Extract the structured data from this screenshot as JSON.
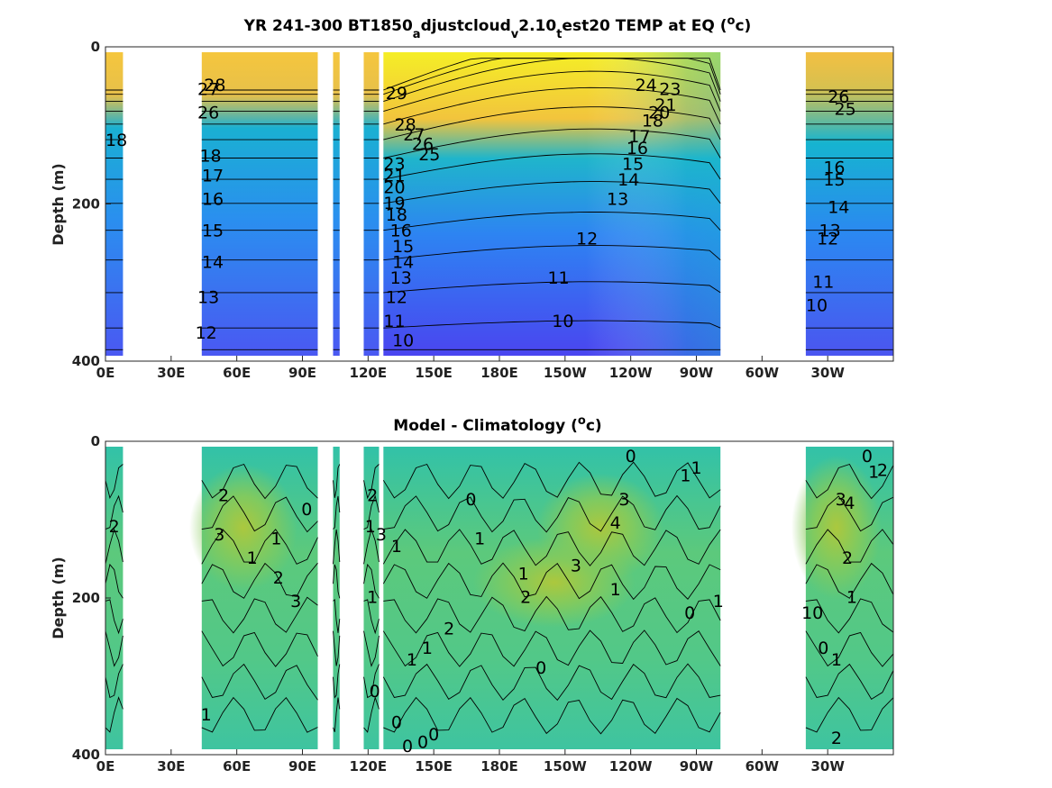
{
  "figure": {
    "title_top": "YR 241-300 BT1850_adjustcloud_v2.10_test20 TEMP at EQ (oc)",
    "title_top_parts": {
      "p1": "YR 241-300 BT1850",
      "s1": "a",
      "p2": "djustcloud",
      "s2": "v",
      "p3": "2.10",
      "s3": "t",
      "p4": "est20 TEMP at EQ (",
      "sup": "o",
      "p5": "c)"
    },
    "title_bottom_parts": {
      "p1": "Model - Climatology (",
      "sup": "o",
      "p2": "c)"
    }
  },
  "chart_data": [
    {
      "type": "heatmap",
      "title": "YR 241-300 BT1850_adjustcloud_v2.10_test20 TEMP at EQ (oc)",
      "xlabel": "",
      "ylabel": "Depth (m)",
      "x_ticks": [
        "0E",
        "30E",
        "60E",
        "90E",
        "120E",
        "150E",
        "180E",
        "150W",
        "120W",
        "90W",
        "60W",
        "30W"
      ],
      "x_tick_lon": [
        0,
        30,
        60,
        90,
        120,
        150,
        180,
        210,
        240,
        270,
        300,
        330
      ],
      "xlim_lon": [
        0,
        360
      ],
      "y_ticks": [
        "0",
        "200",
        "400"
      ],
      "y_tick_values": [
        0,
        200,
        400
      ],
      "ylim": [
        0,
        400
      ],
      "y_reversed": true,
      "colormap": [
        "#4a3cf0",
        "#2f86f5",
        "#17b6cf",
        "#3fc48f",
        "#a7c340",
        "#f7c23d",
        "#f7ee25"
      ],
      "color_range": [
        10,
        29
      ],
      "land_lon_ranges": [
        [
          8,
          44
        ],
        [
          97,
          104
        ],
        [
          107,
          118
        ],
        [
          125,
          127
        ],
        [
          281,
          320
        ]
      ],
      "contour_labels": [
        {
          "text": "28",
          "lon": 50,
          "depth": 50
        },
        {
          "text": "27",
          "lon": 47,
          "depth": 55
        },
        {
          "text": "26",
          "lon": 47,
          "depth": 85
        },
        {
          "text": "18",
          "lon": 48,
          "depth": 140
        },
        {
          "text": "17",
          "lon": 49,
          "depth": 165
        },
        {
          "text": "16",
          "lon": 49,
          "depth": 195
        },
        {
          "text": "15",
          "lon": 49,
          "depth": 235
        },
        {
          "text": "14",
          "lon": 49,
          "depth": 275
        },
        {
          "text": "13",
          "lon": 47,
          "depth": 320
        },
        {
          "text": "12",
          "lon": 46,
          "depth": 365
        },
        {
          "text": "18",
          "lon": 5,
          "depth": 120
        },
        {
          "text": "29",
          "lon": 133,
          "depth": 60
        },
        {
          "text": "28",
          "lon": 137,
          "depth": 100
        },
        {
          "text": "27",
          "lon": 141,
          "depth": 113
        },
        {
          "text": "26",
          "lon": 145,
          "depth": 125
        },
        {
          "text": "25",
          "lon": 148,
          "depth": 138
        },
        {
          "text": "23",
          "lon": 132,
          "depth": 150
        },
        {
          "text": "21",
          "lon": 132,
          "depth": 165
        },
        {
          "text": "20",
          "lon": 132,
          "depth": 180
        },
        {
          "text": "19",
          "lon": 132,
          "depth": 200
        },
        {
          "text": "18",
          "lon": 133,
          "depth": 215
        },
        {
          "text": "16",
          "lon": 135,
          "depth": 235
        },
        {
          "text": "15",
          "lon": 136,
          "depth": 255
        },
        {
          "text": "14",
          "lon": 136,
          "depth": 275
        },
        {
          "text": "13",
          "lon": 135,
          "depth": 295
        },
        {
          "text": "12",
          "lon": 133,
          "depth": 320
        },
        {
          "text": "11",
          "lon": 132,
          "depth": 350
        },
        {
          "text": "10",
          "lon": 136,
          "depth": 375
        },
        {
          "text": "10",
          "lon": 209,
          "depth": 350
        },
        {
          "text": "11",
          "lon": 207,
          "depth": 295
        },
        {
          "text": "12",
          "lon": 220,
          "depth": 245
        },
        {
          "text": "13",
          "lon": 234,
          "depth": 195
        },
        {
          "text": "14",
          "lon": 239,
          "depth": 170
        },
        {
          "text": "15",
          "lon": 241,
          "depth": 150
        },
        {
          "text": "16",
          "lon": 243,
          "depth": 130
        },
        {
          "text": "17",
          "lon": 244,
          "depth": 115
        },
        {
          "text": "18",
          "lon": 250,
          "depth": 95
        },
        {
          "text": "20",
          "lon": 253,
          "depth": 85
        },
        {
          "text": "21",
          "lon": 256,
          "depth": 75
        },
        {
          "text": "23",
          "lon": 258,
          "depth": 55
        },
        {
          "text": "24",
          "lon": 247,
          "depth": 50
        },
        {
          "text": "26",
          "lon": 335,
          "depth": 65
        },
        {
          "text": "25",
          "lon": 338,
          "depth": 80
        },
        {
          "text": "16",
          "lon": 333,
          "depth": 155
        },
        {
          "text": "15",
          "lon": 333,
          "depth": 170
        },
        {
          "text": "14",
          "lon": 335,
          "depth": 205
        },
        {
          "text": "13",
          "lon": 331,
          "depth": 235
        },
        {
          "text": "12",
          "lon": 330,
          "depth": 245
        },
        {
          "text": "11",
          "lon": 328,
          "depth": 300
        },
        {
          "text": "10",
          "lon": 325,
          "depth": 330
        }
      ]
    },
    {
      "type": "heatmap",
      "title": "Model - Climatology (oc)",
      "xlabel": "",
      "ylabel": "Depth (m)",
      "x_ticks": [
        "0E",
        "30E",
        "60E",
        "90E",
        "120E",
        "150E",
        "180E",
        "150W",
        "120W",
        "90W",
        "60W",
        "30W"
      ],
      "x_tick_lon": [
        0,
        30,
        60,
        90,
        120,
        150,
        180,
        210,
        240,
        270,
        300,
        330
      ],
      "xlim_lon": [
        0,
        360
      ],
      "y_ticks": [
        "0",
        "200",
        "400"
      ],
      "y_tick_values": [
        0,
        200,
        400
      ],
      "ylim": [
        0,
        400
      ],
      "y_reversed": true,
      "colormap": [
        "#1fb8c8",
        "#35c4a2",
        "#6fcc72",
        "#a8c83c"
      ],
      "color_range": [
        -1,
        5
      ],
      "land_lon_ranges": [
        [
          8,
          44
        ],
        [
          97,
          104
        ],
        [
          107,
          118
        ],
        [
          125,
          127
        ],
        [
          281,
          320
        ]
      ],
      "contour_labels": [
        {
          "text": "2",
          "lon": 54,
          "depth": 70
        },
        {
          "text": "3",
          "lon": 52,
          "depth": 120
        },
        {
          "text": "1",
          "lon": 67,
          "depth": 150
        },
        {
          "text": "1",
          "lon": 78,
          "depth": 125
        },
        {
          "text": "0",
          "lon": 92,
          "depth": 88
        },
        {
          "text": "2",
          "lon": 79,
          "depth": 175
        },
        {
          "text": "3",
          "lon": 87,
          "depth": 205
        },
        {
          "text": "1",
          "lon": 46,
          "depth": 350
        },
        {
          "text": "2",
          "lon": 4,
          "depth": 110
        },
        {
          "text": "2",
          "lon": 122,
          "depth": 70
        },
        {
          "text": "1",
          "lon": 121,
          "depth": 110
        },
        {
          "text": "3",
          "lon": 126,
          "depth": 120
        },
        {
          "text": "1",
          "lon": 133,
          "depth": 135
        },
        {
          "text": "1",
          "lon": 122,
          "depth": 200
        },
        {
          "text": "0",
          "lon": 167,
          "depth": 75
        },
        {
          "text": "1",
          "lon": 171,
          "depth": 125
        },
        {
          "text": "2",
          "lon": 157,
          "depth": 240
        },
        {
          "text": "1",
          "lon": 147,
          "depth": 265
        },
        {
          "text": "1",
          "lon": 140,
          "depth": 280
        },
        {
          "text": "0",
          "lon": 123,
          "depth": 320
        },
        {
          "text": "0",
          "lon": 133,
          "depth": 360
        },
        {
          "text": "0",
          "lon": 138,
          "depth": 390
        },
        {
          "text": "0",
          "lon": 145,
          "depth": 385
        },
        {
          "text": "0",
          "lon": 150,
          "depth": 375
        },
        {
          "text": "0",
          "lon": 199,
          "depth": 290
        },
        {
          "text": "1",
          "lon": 191,
          "depth": 170
        },
        {
          "text": "2",
          "lon": 192,
          "depth": 200
        },
        {
          "text": "3",
          "lon": 215,
          "depth": 160
        },
        {
          "text": "4",
          "lon": 233,
          "depth": 105
        },
        {
          "text": "3",
          "lon": 237,
          "depth": 75
        },
        {
          "text": "1",
          "lon": 233,
          "depth": 190
        },
        {
          "text": "0",
          "lon": 240,
          "depth": 20
        },
        {
          "text": "1",
          "lon": 265,
          "depth": 45
        },
        {
          "text": "1",
          "lon": 270,
          "depth": 35
        },
        {
          "text": "0",
          "lon": 267,
          "depth": 220
        },
        {
          "text": "1",
          "lon": 280,
          "depth": 205
        },
        {
          "text": "0",
          "lon": 348,
          "depth": 20
        },
        {
          "text": "1",
          "lon": 351,
          "depth": 40
        },
        {
          "text": "2",
          "lon": 355,
          "depth": 38
        },
        {
          "text": "3",
          "lon": 336,
          "depth": 75
        },
        {
          "text": "4",
          "lon": 340,
          "depth": 80
        },
        {
          "text": "2",
          "lon": 339,
          "depth": 150
        },
        {
          "text": "1",
          "lon": 341,
          "depth": 200
        },
        {
          "text": "10",
          "lon": 323,
          "depth": 220
        },
        {
          "text": "0",
          "lon": 328,
          "depth": 265
        },
        {
          "text": "1",
          "lon": 334,
          "depth": 280
        },
        {
          "text": "2",
          "lon": 334,
          "depth": 380
        }
      ]
    }
  ]
}
